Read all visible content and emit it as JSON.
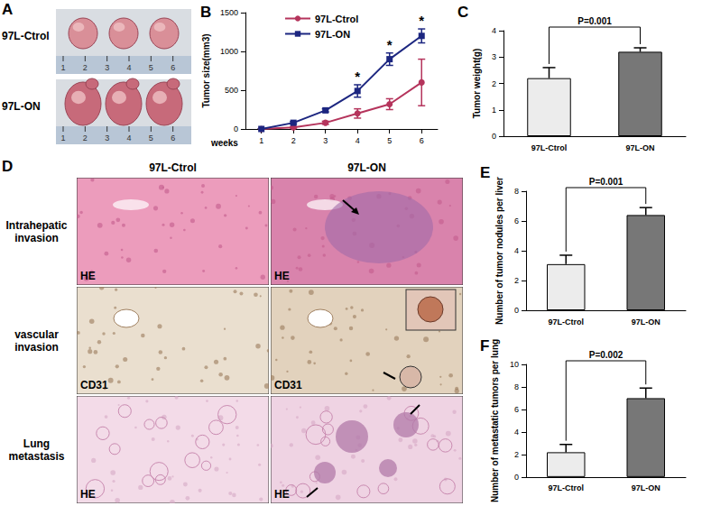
{
  "figure": {
    "A": {
      "label": "A",
      "rows": [
        "97L-Ctrol",
        "97L-ON"
      ],
      "ruler_labels": [
        "1",
        "2",
        "3",
        "4",
        "5",
        "6"
      ]
    },
    "D": {
      "label": "D",
      "columns": [
        "97L-Ctrol",
        "97L-ON"
      ],
      "rows": [
        {
          "name": "Intrahepatic invasion",
          "stain": "HE"
        },
        {
          "name": "vascular invasion",
          "stain": "CD31"
        },
        {
          "name": "Lung metastasis",
          "stain": "HE"
        }
      ]
    }
  },
  "chart_data": [
    {
      "type": "line",
      "title": "B",
      "categories": [
        "1",
        "2",
        "3",
        "4",
        "5",
        "6"
      ],
      "x_label": "weeks",
      "y_label": "Tumor size(mm3)",
      "ylim": [
        0,
        1500
      ],
      "yticks": [
        0,
        500,
        1000,
        1500
      ],
      "grid": false,
      "legend": "upper left",
      "series": [
        {
          "name": "97L-Ctrol",
          "color": "#b5345c",
          "marker": "circle",
          "values": [
            0,
            20,
            80,
            200,
            320,
            600
          ],
          "errors": [
            0,
            10,
            20,
            60,
            70,
            300
          ]
        },
        {
          "name": "97L-ON",
          "color": "#1c2680",
          "marker": "square",
          "values": [
            0,
            80,
            240,
            490,
            900,
            1200
          ],
          "errors": [
            0,
            15,
            20,
            80,
            80,
            90
          ]
        }
      ],
      "annotations": [
        {
          "x": "4",
          "text": "*"
        },
        {
          "x": "5",
          "text": "*"
        },
        {
          "x": "6",
          "text": "*"
        }
      ]
    },
    {
      "type": "bar",
      "title": "C",
      "categories": [
        "97L-Ctrol",
        "97L-ON"
      ],
      "values": [
        2.2,
        3.2
      ],
      "errors": [
        0.4,
        0.15
      ],
      "colors": [
        "#ececec",
        "#777777"
      ],
      "y_label": "Tumor weight(g)",
      "ylim": [
        0,
        4
      ],
      "yticks": [
        0,
        1,
        2,
        3,
        4
      ],
      "grid": false,
      "annotations": [
        {
          "text": "P=0.001"
        }
      ]
    },
    {
      "type": "bar",
      "title": "E",
      "categories": [
        "97L-Ctrol",
        "97L-ON"
      ],
      "values": [
        3.1,
        6.4
      ],
      "errors": [
        0.6,
        0.5
      ],
      "colors": [
        "#ececec",
        "#777777"
      ],
      "y_label": "Number of tumor nodules per liver",
      "ylim": [
        0,
        8
      ],
      "yticks": [
        0,
        2,
        4,
        6,
        8
      ],
      "grid": false,
      "annotations": [
        {
          "text": "P=0.001"
        }
      ]
    },
    {
      "type": "bar",
      "title": "F",
      "categories": [
        "97L-Ctrol",
        "97L-ON"
      ],
      "values": [
        2.2,
        7.0
      ],
      "errors": [
        0.7,
        0.9
      ],
      "colors": [
        "#ececec",
        "#777777"
      ],
      "y_label": "Number of metastatic tumors per lung",
      "ylim": [
        0,
        10
      ],
      "yticks": [
        0,
        2,
        4,
        6,
        8,
        10
      ],
      "grid": false,
      "annotations": [
        {
          "text": "P=0.002"
        }
      ]
    }
  ]
}
